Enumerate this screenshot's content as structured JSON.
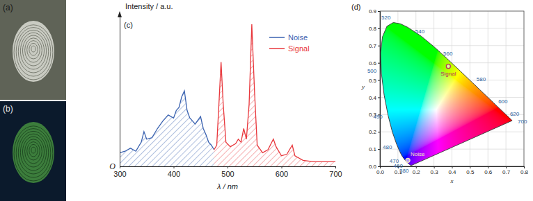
{
  "panels": [
    {
      "label": "(a)"
    },
    {
      "label": "(b)"
    }
  ],
  "chart_data": [
    {
      "type": "area",
      "title": "(c)",
      "xlabel": "λ / nm",
      "ylabel": "Intensity / a.u.",
      "xlim": [
        300,
        700
      ],
      "xticks": [
        300,
        400,
        500,
        600,
        700
      ],
      "ylim": [
        0,
        100
      ],
      "yticks": [
        {
          "value": 0,
          "label": "O"
        }
      ],
      "legend": "upper right",
      "series": [
        {
          "name": "Noise",
          "color": "#3a62b0",
          "x": [
            300,
            310,
            320,
            330,
            340,
            345,
            350,
            360,
            370,
            380,
            390,
            400,
            405,
            410,
            415,
            420,
            425,
            430,
            440,
            450,
            455,
            460,
            465,
            470,
            475
          ],
          "values": [
            9,
            10,
            12,
            10,
            16,
            23,
            18,
            19,
            25,
            30,
            34,
            32,
            37,
            39,
            46,
            50,
            37,
            32,
            28,
            33,
            25,
            21,
            16,
            14,
            11
          ]
        },
        {
          "name": "Signal",
          "color": "#e8383d",
          "x": [
            475,
            480,
            484,
            488,
            492,
            497,
            505,
            515,
            520,
            525,
            530,
            535,
            540,
            545,
            550,
            555,
            565,
            575,
            585,
            590,
            600,
            610,
            620,
            625,
            640,
            660,
            680,
            700
          ],
          "values": [
            11,
            14,
            41,
            69,
            41,
            16,
            13,
            15,
            18,
            16,
            25,
            18,
            41,
            94,
            50,
            14,
            9,
            11,
            18,
            13,
            7,
            8,
            14,
            7,
            4,
            3,
            3,
            3
          ]
        }
      ]
    },
    {
      "type": "scatter",
      "title": "(d)",
      "xlabel": "x",
      "ylabel": "y",
      "xlim": [
        0,
        0.8
      ],
      "xticks": [
        {
          "value": 0,
          "label": "0.0"
        },
        0.1,
        0.2,
        0.3,
        0.4,
        0.5,
        0.6,
        0.7,
        0.8
      ],
      "ylim": [
        0,
        0.9
      ],
      "yticks": [
        {
          "value": 0,
          "label": "0.0"
        },
        0.1,
        0.2,
        0.3,
        0.4,
        0.5,
        0.6,
        0.7,
        0.8,
        0.9
      ],
      "grid": true,
      "locus": {
        "x": [
          0.1741,
          0.1714,
          0.1644,
          0.1566,
          0.144,
          0.1241,
          0.1096,
          0.0913,
          0.0687,
          0.0454,
          0.0235,
          0.0082,
          0.0039,
          0.0139,
          0.0389,
          0.0743,
          0.1142,
          0.1547,
          0.2296,
          0.3016,
          0.3731,
          0.4441,
          0.5125,
          0.5752,
          0.627,
          0.6915,
          0.719,
          0.7347
        ],
        "y": [
          0.005,
          0.0051,
          0.0109,
          0.0177,
          0.0297,
          0.0578,
          0.0868,
          0.1327,
          0.2007,
          0.295,
          0.4127,
          0.5384,
          0.6548,
          0.7502,
          0.812,
          0.8338,
          0.8262,
          0.8059,
          0.7543,
          0.6923,
          0.6245,
          0.5547,
          0.4866,
          0.4242,
          0.3725,
          0.3083,
          0.2809,
          0.2653
        ],
        "labels": [
          380,
          null,
          null,
          null,
          460,
          470,
          null,
          480,
          null,
          490,
          null,
          500,
          null,
          null,
          null,
          520,
          null,
          null,
          540,
          null,
          560,
          null,
          580,
          null,
          600,
          620,
          null,
          700
        ]
      },
      "series": [
        {
          "name": "Signal",
          "color": "#b8325e",
          "x": [
            0.38
          ],
          "values": [
            0.58
          ]
        },
        {
          "name": "Noise",
          "color": "#f3e7c0",
          "x": [
            0.155
          ],
          "values": [
            0.035
          ]
        }
      ]
    }
  ]
}
